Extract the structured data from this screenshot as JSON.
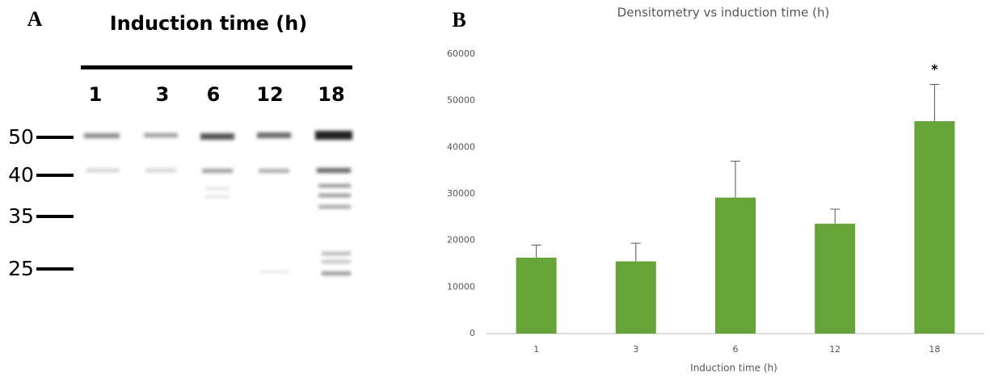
{
  "gel": {
    "panel_label": "A",
    "title": "Induction time (h)",
    "lanes": [
      "1",
      "3",
      "6",
      "12",
      "18"
    ],
    "markers": [
      "50",
      "40",
      "35",
      "25"
    ]
  },
  "chart_data": {
    "type": "bar",
    "panel_label": "B",
    "title": "Densitometry vs induction time (h)",
    "x_label": "Induction time (h)",
    "categories": [
      "1",
      "3",
      "6",
      "12",
      "18"
    ],
    "values": [
      16300,
      15500,
      29200,
      23600,
      45600
    ],
    "errors": [
      2700,
      3900,
      7800,
      3100,
      7900
    ],
    "color": "#66a43a",
    "error_color": "#555555",
    "ylim": [
      0,
      60000
    ],
    "yticks": [
      0,
      10000,
      20000,
      30000,
      40000,
      50000,
      60000
    ],
    "grid": false,
    "annotations": [
      {
        "category": "18",
        "text": "*"
      }
    ]
  }
}
